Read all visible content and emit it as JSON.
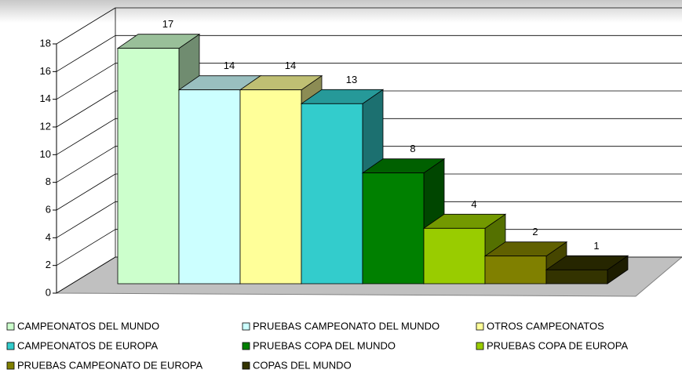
{
  "chart_data": {
    "type": "bar",
    "series": [
      {
        "name": "CAMPEONATOS DEL MUNDO",
        "color": "#ccffcc",
        "values": [
          17
        ]
      },
      {
        "name": "PRUEBAS CAMPEONATO DEL MUNDO",
        "color": "#ccffff",
        "values": [
          14
        ]
      },
      {
        "name": "OTROS CAMPEONATOS",
        "color": "#ffff99",
        "values": [
          14
        ]
      },
      {
        "name": "CAMPEONATOS DE EUROPA",
        "color": "#33cccc",
        "values": [
          13
        ]
      },
      {
        "name": "PRUEBAS COPA DEL MUNDO",
        "color": "#008000",
        "values": [
          8
        ]
      },
      {
        "name": "PRUEBAS COPA DE EUROPA",
        "color": "#99cc00",
        "values": [
          4
        ]
      },
      {
        "name": "PRUEBAS CAMPEONATO DE EUROPA",
        "color": "#808000",
        "values": [
          2
        ]
      },
      {
        "name": "COPAS DEL MUNDO",
        "color": "#333300",
        "values": [
          1
        ]
      }
    ],
    "ylim": [
      0,
      18
    ],
    "yticks": [
      0,
      2,
      4,
      6,
      8,
      10,
      12,
      14,
      16,
      18
    ],
    "grid": true,
    "legend": "bottom"
  }
}
